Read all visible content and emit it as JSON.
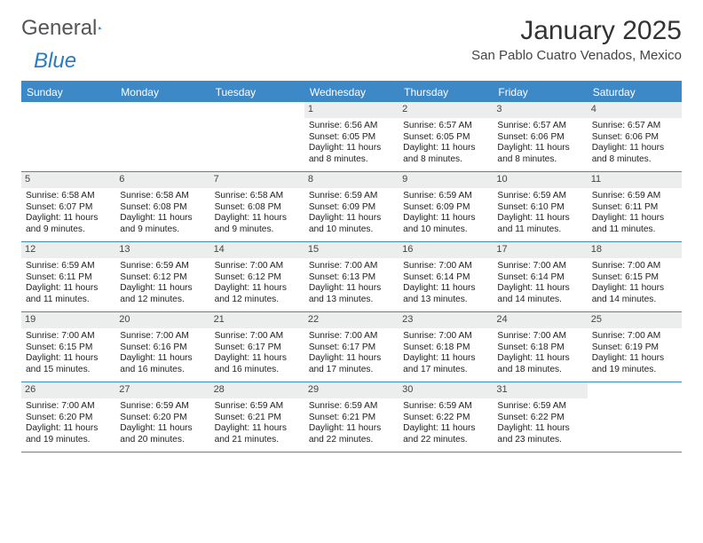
{
  "brand": {
    "name1": "General",
    "name2": "Blue"
  },
  "title": "January 2025",
  "location": "San Pablo Cuatro Venados, Mexico",
  "colors": {
    "accent": "#3d88c7",
    "row_alt": "#eceded",
    "text": "#222222",
    "bg": "#ffffff"
  },
  "day_headers": [
    "Sunday",
    "Monday",
    "Tuesday",
    "Wednesday",
    "Thursday",
    "Friday",
    "Saturday"
  ],
  "weeks": [
    [
      {
        "n": "",
        "sr": "",
        "ss": "",
        "dl": ""
      },
      {
        "n": "",
        "sr": "",
        "ss": "",
        "dl": ""
      },
      {
        "n": "",
        "sr": "",
        "ss": "",
        "dl": ""
      },
      {
        "n": "1",
        "sr": "Sunrise: 6:56 AM",
        "ss": "Sunset: 6:05 PM",
        "dl": "Daylight: 11 hours and 8 minutes."
      },
      {
        "n": "2",
        "sr": "Sunrise: 6:57 AM",
        "ss": "Sunset: 6:05 PM",
        "dl": "Daylight: 11 hours and 8 minutes."
      },
      {
        "n": "3",
        "sr": "Sunrise: 6:57 AM",
        "ss": "Sunset: 6:06 PM",
        "dl": "Daylight: 11 hours and 8 minutes."
      },
      {
        "n": "4",
        "sr": "Sunrise: 6:57 AM",
        "ss": "Sunset: 6:06 PM",
        "dl": "Daylight: 11 hours and 8 minutes."
      }
    ],
    [
      {
        "n": "5",
        "sr": "Sunrise: 6:58 AM",
        "ss": "Sunset: 6:07 PM",
        "dl": "Daylight: 11 hours and 9 minutes."
      },
      {
        "n": "6",
        "sr": "Sunrise: 6:58 AM",
        "ss": "Sunset: 6:08 PM",
        "dl": "Daylight: 11 hours and 9 minutes."
      },
      {
        "n": "7",
        "sr": "Sunrise: 6:58 AM",
        "ss": "Sunset: 6:08 PM",
        "dl": "Daylight: 11 hours and 9 minutes."
      },
      {
        "n": "8",
        "sr": "Sunrise: 6:59 AM",
        "ss": "Sunset: 6:09 PM",
        "dl": "Daylight: 11 hours and 10 minutes."
      },
      {
        "n": "9",
        "sr": "Sunrise: 6:59 AM",
        "ss": "Sunset: 6:09 PM",
        "dl": "Daylight: 11 hours and 10 minutes."
      },
      {
        "n": "10",
        "sr": "Sunrise: 6:59 AM",
        "ss": "Sunset: 6:10 PM",
        "dl": "Daylight: 11 hours and 11 minutes."
      },
      {
        "n": "11",
        "sr": "Sunrise: 6:59 AM",
        "ss": "Sunset: 6:11 PM",
        "dl": "Daylight: 11 hours and 11 minutes."
      }
    ],
    [
      {
        "n": "12",
        "sr": "Sunrise: 6:59 AM",
        "ss": "Sunset: 6:11 PM",
        "dl": "Daylight: 11 hours and 11 minutes."
      },
      {
        "n": "13",
        "sr": "Sunrise: 6:59 AM",
        "ss": "Sunset: 6:12 PM",
        "dl": "Daylight: 11 hours and 12 minutes."
      },
      {
        "n": "14",
        "sr": "Sunrise: 7:00 AM",
        "ss": "Sunset: 6:12 PM",
        "dl": "Daylight: 11 hours and 12 minutes."
      },
      {
        "n": "15",
        "sr": "Sunrise: 7:00 AM",
        "ss": "Sunset: 6:13 PM",
        "dl": "Daylight: 11 hours and 13 minutes."
      },
      {
        "n": "16",
        "sr": "Sunrise: 7:00 AM",
        "ss": "Sunset: 6:14 PM",
        "dl": "Daylight: 11 hours and 13 minutes."
      },
      {
        "n": "17",
        "sr": "Sunrise: 7:00 AM",
        "ss": "Sunset: 6:14 PM",
        "dl": "Daylight: 11 hours and 14 minutes."
      },
      {
        "n": "18",
        "sr": "Sunrise: 7:00 AM",
        "ss": "Sunset: 6:15 PM",
        "dl": "Daylight: 11 hours and 14 minutes."
      }
    ],
    [
      {
        "n": "19",
        "sr": "Sunrise: 7:00 AM",
        "ss": "Sunset: 6:15 PM",
        "dl": "Daylight: 11 hours and 15 minutes."
      },
      {
        "n": "20",
        "sr": "Sunrise: 7:00 AM",
        "ss": "Sunset: 6:16 PM",
        "dl": "Daylight: 11 hours and 16 minutes."
      },
      {
        "n": "21",
        "sr": "Sunrise: 7:00 AM",
        "ss": "Sunset: 6:17 PM",
        "dl": "Daylight: 11 hours and 16 minutes."
      },
      {
        "n": "22",
        "sr": "Sunrise: 7:00 AM",
        "ss": "Sunset: 6:17 PM",
        "dl": "Daylight: 11 hours and 17 minutes."
      },
      {
        "n": "23",
        "sr": "Sunrise: 7:00 AM",
        "ss": "Sunset: 6:18 PM",
        "dl": "Daylight: 11 hours and 17 minutes."
      },
      {
        "n": "24",
        "sr": "Sunrise: 7:00 AM",
        "ss": "Sunset: 6:18 PM",
        "dl": "Daylight: 11 hours and 18 minutes."
      },
      {
        "n": "25",
        "sr": "Sunrise: 7:00 AM",
        "ss": "Sunset: 6:19 PM",
        "dl": "Daylight: 11 hours and 19 minutes."
      }
    ],
    [
      {
        "n": "26",
        "sr": "Sunrise: 7:00 AM",
        "ss": "Sunset: 6:20 PM",
        "dl": "Daylight: 11 hours and 19 minutes."
      },
      {
        "n": "27",
        "sr": "Sunrise: 6:59 AM",
        "ss": "Sunset: 6:20 PM",
        "dl": "Daylight: 11 hours and 20 minutes."
      },
      {
        "n": "28",
        "sr": "Sunrise: 6:59 AM",
        "ss": "Sunset: 6:21 PM",
        "dl": "Daylight: 11 hours and 21 minutes."
      },
      {
        "n": "29",
        "sr": "Sunrise: 6:59 AM",
        "ss": "Sunset: 6:21 PM",
        "dl": "Daylight: 11 hours and 22 minutes."
      },
      {
        "n": "30",
        "sr": "Sunrise: 6:59 AM",
        "ss": "Sunset: 6:22 PM",
        "dl": "Daylight: 11 hours and 22 minutes."
      },
      {
        "n": "31",
        "sr": "Sunrise: 6:59 AM",
        "ss": "Sunset: 6:22 PM",
        "dl": "Daylight: 11 hours and 23 minutes."
      },
      {
        "n": "",
        "sr": "",
        "ss": "",
        "dl": ""
      }
    ]
  ]
}
